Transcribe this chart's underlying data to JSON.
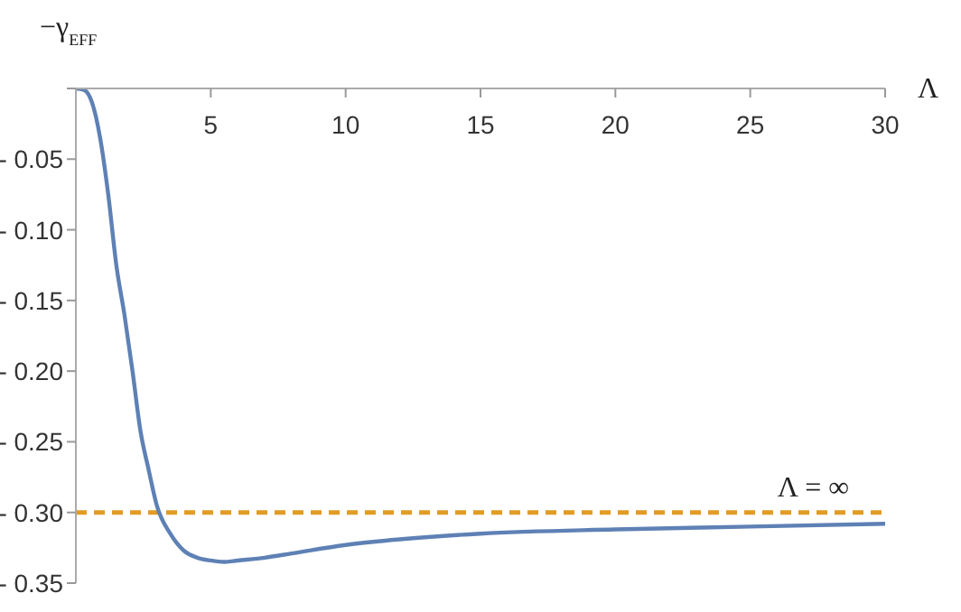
{
  "chart_data": {
    "type": "line",
    "xlabel": "Λ",
    "ylabel": "−γ$_{EFF}$",
    "x": [
      0,
      0.3,
      0.6,
      0.9,
      1.2,
      1.5,
      1.8,
      2.1,
      2.4,
      2.7,
      3.0,
      3.5,
      4,
      4.5,
      5,
      5.5,
      6,
      7,
      8,
      10,
      12,
      15,
      20,
      25,
      30
    ],
    "series": [
      {
        "color": "#5e81b5",
        "values": [
          0,
          -0.001,
          -0.01,
          -0.035,
          -0.075,
          -0.125,
          -0.16,
          -0.2,
          -0.243,
          -0.27,
          -0.295,
          -0.315,
          -0.327,
          -0.332,
          -0.334,
          -0.335,
          -0.334,
          -0.332,
          -0.329,
          -0.323,
          -0.319,
          -0.315,
          -0.312,
          -0.31,
          -0.308
        ]
      }
    ],
    "xlim": [
      0,
      30
    ],
    "xticks": [
      {
        "value": 0,
        "label": null
      },
      5,
      10,
      15,
      20,
      25,
      30
    ],
    "ylim": [
      -0.35,
      0
    ],
    "yticks": [
      {
        "value": 0,
        "label": null
      },
      {
        "value": -0.05,
        "label": "- 0.05"
      },
      {
        "value": -0.1,
        "label": "- 0.10"
      },
      {
        "value": -0.15,
        "label": "- 0.15"
      },
      {
        "value": -0.2,
        "label": "- 0.20"
      },
      {
        "value": -0.25,
        "label": "- 0.25"
      },
      {
        "value": -0.3,
        "label": "- 0.30"
      },
      {
        "value": -0.35,
        "label": "- 0.35"
      }
    ],
    "ref_lines": [
      {
        "axis": "y",
        "value": -0.3,
        "label": "Λ = ∞",
        "color": "#e19c24",
        "line_style": "dashed"
      }
    ],
    "grid": false,
    "legend": false,
    "marker": "none",
    "line_style": "solid"
  }
}
